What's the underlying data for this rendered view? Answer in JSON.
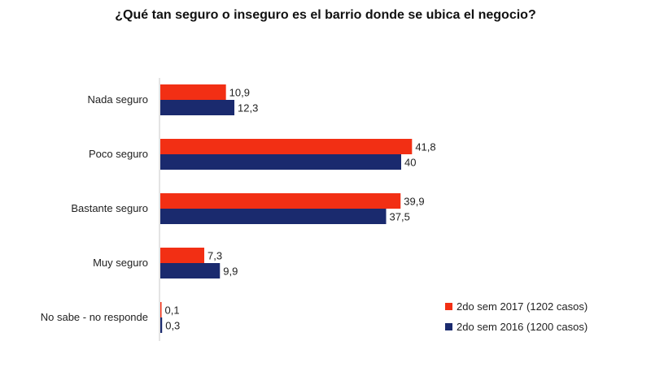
{
  "chart_data": {
    "type": "bar",
    "orientation": "horizontal",
    "title": "¿Qué tan seguro o inseguro es el barrio donde se ubica el negocio?",
    "categories": [
      "Nada seguro",
      "Poco seguro",
      "Bastante seguro",
      "Muy seguro",
      "No sabe - no responde"
    ],
    "series": [
      {
        "name": "2do sem 2017 (1202 casos)",
        "color": "#f22f14",
        "values": [
          10.9,
          41.8,
          39.9,
          7.3,
          0.1
        ],
        "labels": [
          "10,9",
          "41,8",
          "39,9",
          "7,3",
          "0,1"
        ]
      },
      {
        "name": "2do sem 2016 (1200 casos)",
        "color": "#1a2a6e",
        "values": [
          12.3,
          40,
          37.5,
          9.9,
          0.3
        ],
        "labels": [
          "12,3",
          "40",
          "37,5",
          "9,9",
          "0,3"
        ]
      }
    ],
    "xlim": [
      0,
      45
    ],
    "grid": false,
    "legend_position": "bottom-right"
  }
}
